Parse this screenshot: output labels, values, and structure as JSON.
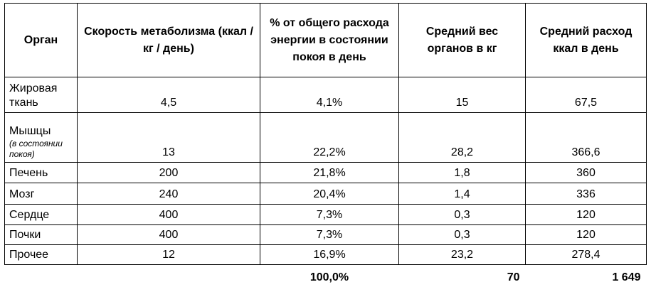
{
  "table": {
    "header": [
      "Орган",
      "Скорость метаболизма (ккал / кг / день)",
      "% от общего расхода энергии в состоянии покоя в день",
      "Средний вес органов в кг",
      "Средний расход ккал в день"
    ],
    "rows": [
      {
        "organ": "Жировая ткань",
        "cells": [
          "4,5",
          "4,1%",
          "15",
          "67,5"
        ]
      },
      {
        "organ": "Мышцы",
        "note": "(в состоянии покоя)",
        "cells": [
          "13",
          "22,2%",
          "28,2",
          "366,6"
        ]
      },
      {
        "organ": "Печень",
        "cells": [
          "200",
          "21,8%",
          "1,8",
          "360"
        ]
      },
      {
        "organ": "Мозг",
        "cells": [
          "240",
          "20,4%",
          "1,4",
          "336"
        ]
      },
      {
        "organ": "Сердце",
        "cells": [
          "400",
          "7,3%",
          "0,3",
          "120"
        ]
      },
      {
        "organ": "Почки",
        "cells": [
          "400",
          "7,3%",
          "0,3",
          "120"
        ]
      },
      {
        "organ": "Прочее",
        "cells": [
          "12",
          "16,9%",
          "23,2",
          "278,4"
        ]
      }
    ],
    "totals": [
      "100,0%",
      "70",
      "1 649"
    ]
  }
}
